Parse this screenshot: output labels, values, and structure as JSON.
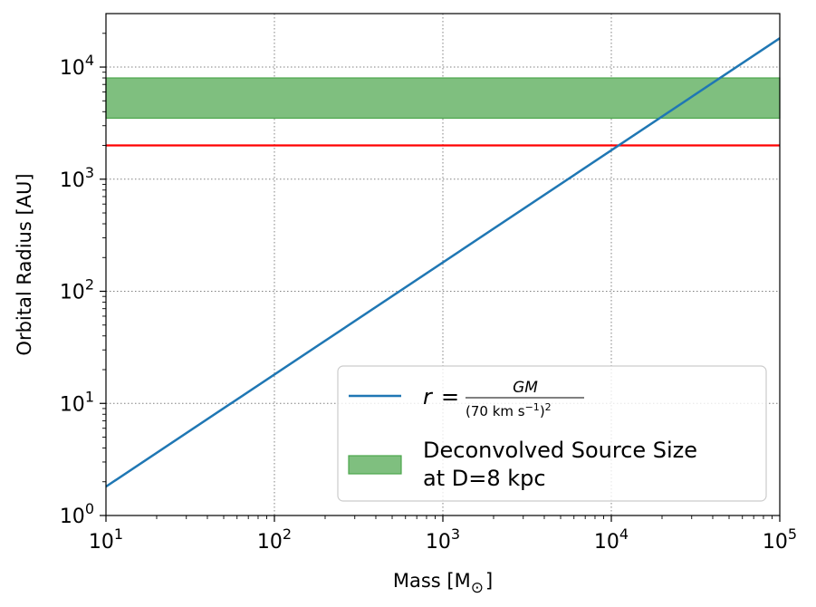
{
  "chart_data": {
    "type": "line",
    "xscale": "log",
    "yscale": "log",
    "xlim": [
      10,
      100000
    ],
    "ylim": [
      1,
      30000
    ],
    "xlabel_text": "Mass [M",
    "xlabel_sub": "⊙",
    "xlabel_close": "]",
    "ylabel": "Orbital Radius [AU]",
    "grid": true,
    "x_ticks": [
      {
        "value": 10,
        "base": "10",
        "exp": "1"
      },
      {
        "value": 100,
        "base": "10",
        "exp": "2"
      },
      {
        "value": 1000,
        "base": "10",
        "exp": "3"
      },
      {
        "value": 10000,
        "base": "10",
        "exp": "4"
      },
      {
        "value": 100000,
        "base": "10",
        "exp": "5"
      }
    ],
    "y_ticks": [
      {
        "value": 1,
        "base": "10",
        "exp": "0"
      },
      {
        "value": 10,
        "base": "10",
        "exp": "1"
      },
      {
        "value": 100,
        "base": "10",
        "exp": "2"
      },
      {
        "value": 1000,
        "base": "10",
        "exp": "3"
      },
      {
        "value": 10000,
        "base": "10",
        "exp": "4"
      }
    ],
    "series": [
      {
        "name": "r = GM / (70 km s⁻¹)²",
        "color": "#1f77b4",
        "x": [
          10,
          100000
        ],
        "y": [
          1.81,
          18100
        ]
      }
    ],
    "band": {
      "name": "Deconvolved Source Size at D=8 kpc",
      "y_low": 3500,
      "y_high": 8000,
      "fill": "#7fbf7f",
      "edge": "#4ca64c"
    },
    "hline": {
      "y": 2000,
      "color": "#ff0000"
    },
    "legend": {
      "placement": "lower-right",
      "entries": [
        {
          "key": "line",
          "label_lhs": "r",
          "label_eq": "=",
          "label_num": "GM",
          "label_den": "(70 km s",
          "label_den_exp": "−1",
          "label_den_close": ")",
          "label_den_sq": "2"
        },
        {
          "key": "patch",
          "line1": "Deconvolved Source Size",
          "line2": "at D=8 kpc"
        }
      ]
    }
  }
}
